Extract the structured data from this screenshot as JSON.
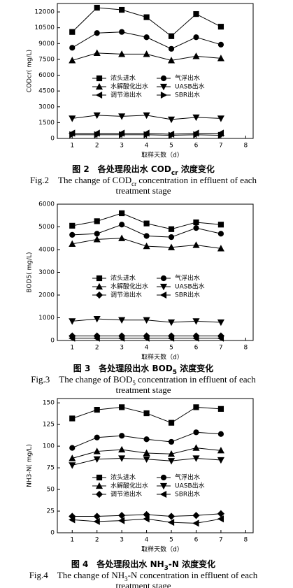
{
  "chart_data": [
    {
      "type": "line",
      "ylabel": "CODcr( mg/L)",
      "xlabel": "取样天数（d）",
      "x": [
        1,
        2,
        3,
        4,
        5,
        6,
        7
      ],
      "xlim": [
        0.4,
        8.3
      ],
      "xticks": [
        1,
        2,
        3,
        4,
        5,
        6,
        7,
        8
      ],
      "ylim": [
        0,
        12800
      ],
      "yticks": [
        0,
        1500,
        3000,
        4500,
        6000,
        7500,
        9000,
        10500,
        12000
      ],
      "series": [
        {
          "name": "浓头进水",
          "color": "#000000",
          "marker": "square",
          "values": [
            10100,
            12400,
            12200,
            11500,
            9700,
            11800,
            10600
          ]
        },
        {
          "name": "气浮出水",
          "color": "#000000",
          "marker": "circle",
          "values": [
            8600,
            10000,
            10100,
            9600,
            8500,
            9600,
            8900
          ]
        },
        {
          "name": "水解酸化出水",
          "color": "#000000",
          "marker": "up",
          "values": [
            7400,
            8100,
            8000,
            8000,
            7400,
            7800,
            7600
          ]
        },
        {
          "name": "UASB出水",
          "color": "#000000",
          "marker": "down",
          "values": [
            1900,
            2200,
            2100,
            2200,
            1800,
            2000,
            1900
          ]
        },
        {
          "name": "调节池出水",
          "color": "#000000",
          "marker": "left",
          "values": [
            500,
            500,
            500,
            500,
            400,
            500,
            500
          ]
        },
        {
          "name": "SBR出水",
          "color": "#000000",
          "marker": "right",
          "values": [
            350,
            350,
            350,
            350,
            300,
            350,
            300
          ]
        }
      ],
      "caption_cn": [
        "图 2　各处理段出水 COD",
        "cr",
        " 浓度变化"
      ],
      "caption_en": [
        [
          "Fig.2　The change of COD",
          "cr",
          " concentration in effluent of each"
        ],
        [
          "treatment stage"
        ]
      ]
    },
    {
      "type": "line",
      "ylabel": "BOD5( mg/L)",
      "xlabel": "取样天数（d）",
      "x": [
        1,
        2,
        3,
        4,
        5,
        6,
        7
      ],
      "xlim": [
        0.4,
        8.3
      ],
      "xticks": [
        1,
        2,
        3,
        4,
        5,
        6,
        7,
        8
      ],
      "ylim": [
        0,
        6000
      ],
      "yticks": [
        0,
        1000,
        2000,
        3000,
        4000,
        5000,
        6000
      ],
      "series": [
        {
          "name": "浓头进水",
          "color": "#000000",
          "marker": "square",
          "values": [
            5050,
            5250,
            5600,
            5150,
            4900,
            5200,
            5100
          ]
        },
        {
          "name": "气浮出水",
          "color": "#000000",
          "marker": "circle",
          "values": [
            4650,
            4700,
            5100,
            4600,
            4550,
            4950,
            4700
          ]
        },
        {
          "name": "水解酸化出水",
          "color": "#000000",
          "marker": "up",
          "values": [
            4250,
            4450,
            4500,
            4150,
            4100,
            4200,
            4050
          ]
        },
        {
          "name": "UASB出水",
          "color": "#000000",
          "marker": "down",
          "values": [
            850,
            950,
            900,
            900,
            800,
            850,
            800
          ]
        },
        {
          "name": "调节池出水",
          "color": "#000000",
          "marker": "diamond",
          "values": [
            200,
            200,
            200,
            200,
            200,
            200,
            200
          ]
        },
        {
          "name": "SBR出水",
          "color": "#000000",
          "marker": "left",
          "values": [
            100,
            100,
            100,
            100,
            100,
            100,
            100
          ]
        }
      ],
      "caption_cn": [
        "图 3　各处理段出水 BOD",
        "5",
        " 浓度变化"
      ],
      "caption_en": [
        [
          "Fig.3　The change of BOD",
          "5",
          " concentration in effluent of each"
        ],
        [
          "treatment stage"
        ]
      ]
    },
    {
      "type": "line",
      "ylabel": "NH3-N( mg/L)",
      "xlabel": "取样天数（d）",
      "x": [
        1,
        2,
        3,
        4,
        5,
        6,
        7
      ],
      "xlim": [
        0.4,
        8.3
      ],
      "xticks": [
        1,
        2,
        3,
        4,
        5,
        6,
        7,
        8
      ],
      "ylim": [
        0,
        155
      ],
      "yticks": [
        0,
        25,
        50,
        75,
        100,
        125,
        150
      ],
      "series": [
        {
          "name": "浓头进水",
          "color": "#000000",
          "marker": "square",
          "values": [
            132,
            142,
            145,
            138,
            127,
            145,
            143
          ]
        },
        {
          "name": "气浮出水",
          "color": "#000000",
          "marker": "circle",
          "values": [
            98,
            110,
            112,
            108,
            105,
            116,
            114
          ]
        },
        {
          "name": "水解酸化出水",
          "color": "#000000",
          "marker": "up",
          "values": [
            86,
            94,
            96,
            92,
            91,
            98,
            95
          ]
        },
        {
          "name": "UASB出水",
          "color": "#000000",
          "marker": "down",
          "values": [
            78,
            85,
            86,
            85,
            83,
            86,
            84
          ]
        },
        {
          "name": "调节池出水",
          "color": "#000000",
          "marker": "diamond",
          "values": [
            19,
            19,
            20,
            21,
            19,
            20,
            22
          ]
        },
        {
          "name": "SBR出水",
          "color": "#000000",
          "marker": "left",
          "values": [
            15,
            13,
            14,
            16,
            12,
            11,
            16
          ]
        }
      ],
      "caption_cn": [
        "图 4　各处理段出水 NH",
        "3",
        "-N 浓度变化"
      ],
      "caption_en": [
        [
          "Fig.4　The change of NH",
          "3",
          "-N concentration in effluent of each"
        ],
        [
          "treatment stage"
        ]
      ]
    }
  ]
}
